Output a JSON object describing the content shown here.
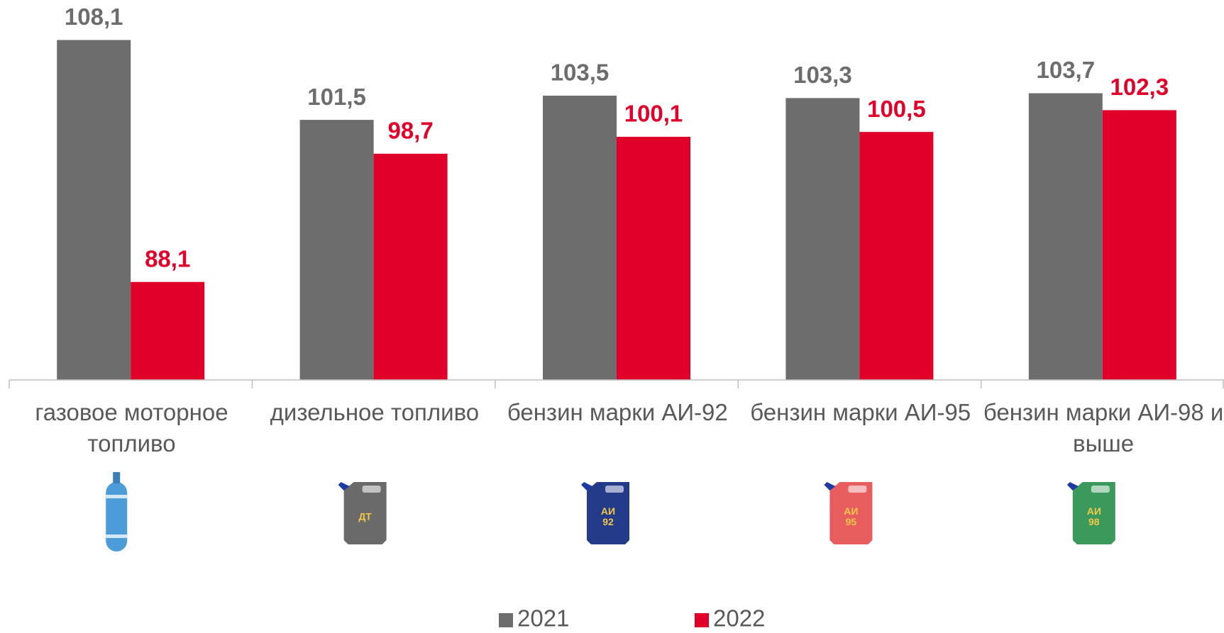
{
  "chart_data": {
    "type": "bar",
    "categories": [
      "газовое моторное топливо",
      "дизельное топливо",
      "бензин марки АИ-92",
      "бензин марки АИ-95",
      "бензин марки АИ-98 и выше"
    ],
    "series": [
      {
        "name": "2021",
        "color": "#6d6d6d",
        "values": [
          108.1,
          101.5,
          103.5,
          103.3,
          103.7
        ],
        "value_labels": [
          "108,1",
          "101,5",
          "103,5",
          "103,3",
          "103,7"
        ]
      },
      {
        "name": "2022",
        "color": "#e0002a",
        "values": [
          88.1,
          98.7,
          100.1,
          100.5,
          102.3
        ],
        "value_labels": [
          "88,1",
          "98,7",
          "100,1",
          "100,5",
          "102,3"
        ]
      }
    ],
    "ylim": [
      80,
      110
    ],
    "icon_labels": [
      [
        "ДТ"
      ],
      [
        "АИ",
        "92"
      ],
      [
        "АИ",
        "95"
      ],
      [
        "АИ",
        "98"
      ]
    ],
    "legend": "bottom"
  }
}
